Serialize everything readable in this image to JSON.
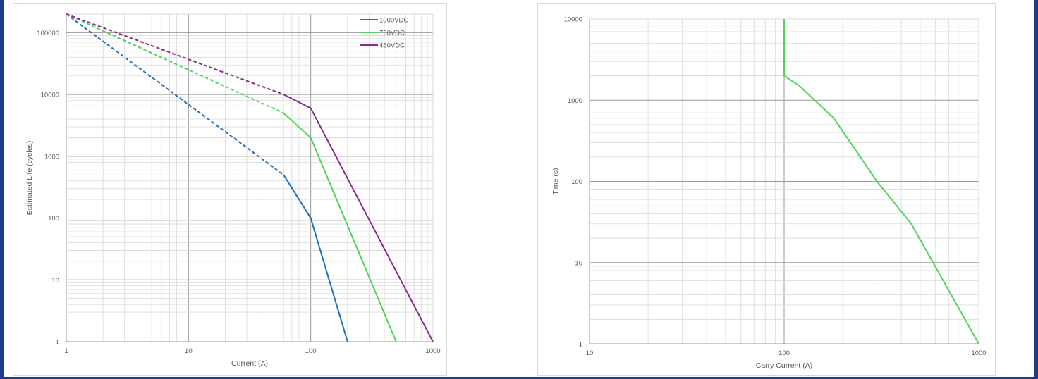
{
  "chart_data": [
    {
      "type": "line",
      "xscale": "log",
      "yscale": "log",
      "xlim": [
        1,
        1000
      ],
      "ylim": [
        1,
        200000
      ],
      "xlabel": "Current (A)",
      "ylabel": "Estimated Life (cycles)",
      "xticks": [
        "1",
        "10",
        "100",
        "1000"
      ],
      "yticks": [
        "1",
        "10",
        "100",
        "1000",
        "10000",
        "100000"
      ],
      "grid": true,
      "legend_position": "top-right",
      "series": [
        {
          "name": "1000VDC",
          "color": "#1f6fba",
          "dashed": {
            "x": [
              1,
              60
            ],
            "y": [
              200000,
              500
            ]
          },
          "solid": {
            "x": [
              60,
              100,
              200
            ],
            "y": [
              500,
              100,
              1
            ]
          }
        },
        {
          "name": "750VDC",
          "color": "#4fd35a",
          "dashed": {
            "x": [
              1,
              60
            ],
            "y": [
              200000,
              5000
            ]
          },
          "solid": {
            "x": [
              60,
              100,
              500
            ],
            "y": [
              5000,
              2000,
              1
            ]
          }
        },
        {
          "name": "450VDC",
          "color": "#8b2a8b",
          "dashed": {
            "x": [
              1,
              60
            ],
            "y": [
              200000,
              10000
            ]
          },
          "solid": {
            "x": [
              60,
              100,
              1000
            ],
            "y": [
              10000,
              6000,
              1
            ]
          }
        }
      ]
    },
    {
      "type": "line",
      "xscale": "log",
      "yscale": "log",
      "xlim": [
        10,
        1000
      ],
      "ylim": [
        1,
        10000
      ],
      "xlabel": "Carry Current (A)",
      "ylabel": "Time (s)",
      "xticks": [
        "10",
        "100",
        "1000"
      ],
      "yticks": [
        "1",
        "10",
        "100",
        "1000",
        "10000"
      ],
      "grid": true,
      "series": [
        {
          "color": "#4fd35a",
          "x": [
            100,
            100,
            120,
            180,
            300,
            450,
            1000
          ],
          "y": [
            10000,
            2000,
            1500,
            600,
            100,
            30,
            1
          ]
        }
      ]
    }
  ]
}
